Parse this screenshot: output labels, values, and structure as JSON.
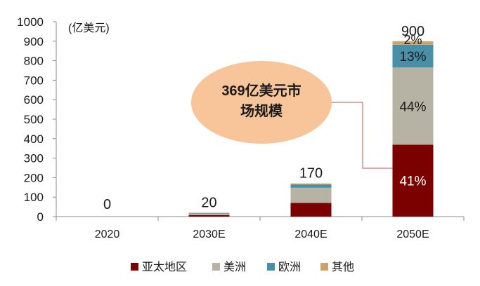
{
  "chart_data": {
    "type": "bar",
    "stacked": true,
    "unit_label": "(亿美元)",
    "categories": [
      "2020",
      "2030E",
      "2040E",
      "2050E"
    ],
    "totals": [
      "0",
      "20",
      "170",
      "900"
    ],
    "ylim": [
      0,
      1000
    ],
    "yticks": [
      0,
      100,
      200,
      300,
      400,
      500,
      600,
      700,
      800,
      900,
      1000
    ],
    "grid": false,
    "legend_position": "bottom",
    "series": [
      {
        "name": "亚太地区",
        "color": "#7B0000",
        "values": [
          0,
          8,
          70,
          369
        ]
      },
      {
        "name": "美洲",
        "color": "#B7B3A4",
        "values": [
          0,
          8,
          78,
          396
        ]
      },
      {
        "name": "欧洲",
        "color": "#4A8FA8",
        "values": [
          0,
          3,
          17,
          117
        ]
      },
      {
        "name": "其他",
        "color": "#C9A36A",
        "values": [
          0,
          1,
          5,
          18
        ]
      }
    ],
    "segment_labels": [
      {
        "category": "2050E",
        "series": "亚太地区",
        "text": "41%",
        "color": "#ffffff"
      },
      {
        "category": "2050E",
        "series": "美洲",
        "text": "44%",
        "color": "#1a1a1a"
      },
      {
        "category": "2050E",
        "series": "欧洲",
        "text": "13%",
        "color": "#1a1a1a"
      },
      {
        "category": "2050E",
        "series": "其他",
        "text": "2%",
        "color": "#1a1a1a"
      }
    ],
    "callout": {
      "lines": [
        "369亿美元市",
        "场规模"
      ],
      "fill": "#F8C49A",
      "target_category": "2050E",
      "target_series": "亚太地区"
    }
  }
}
